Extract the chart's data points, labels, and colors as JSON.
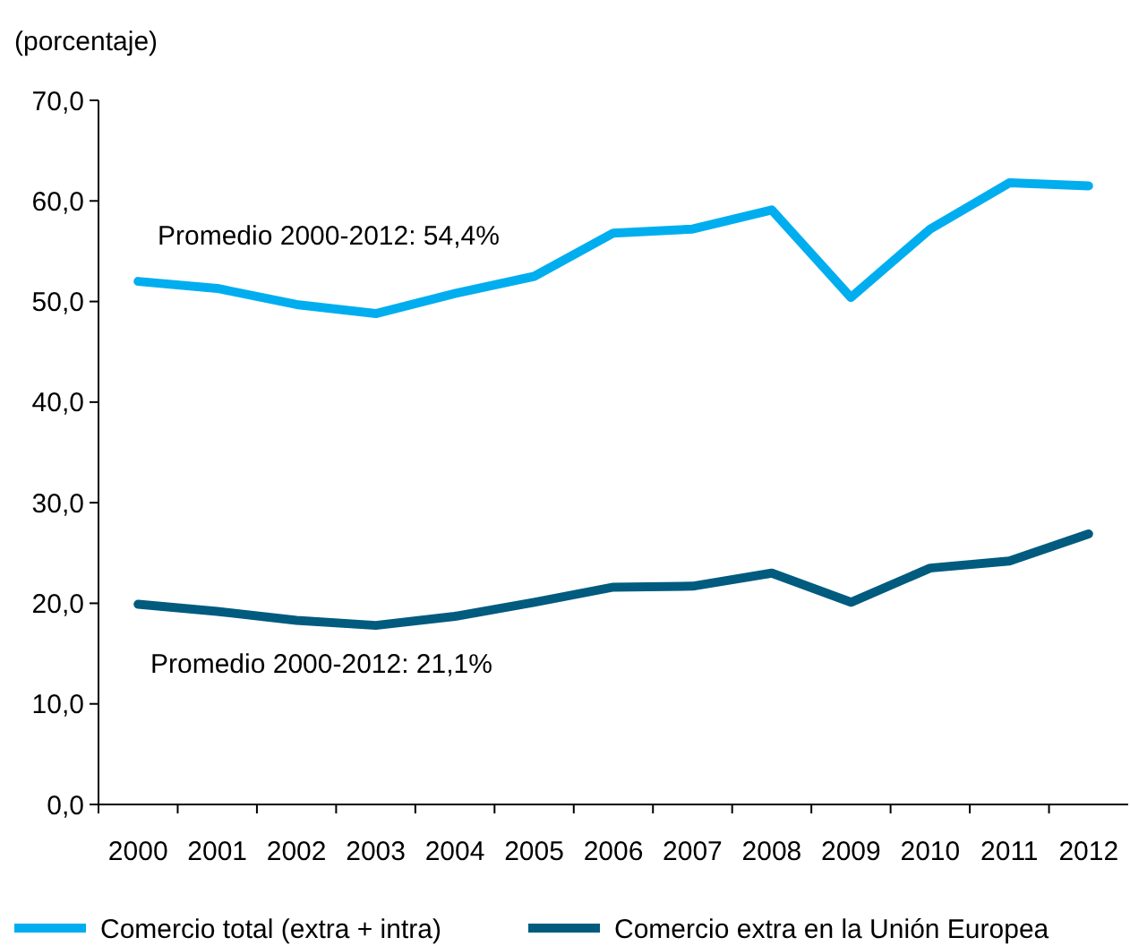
{
  "chart_data": {
    "type": "line",
    "ylabel": "(porcentaje)",
    "categories": [
      "2000",
      "2001",
      "2002",
      "2003",
      "2004",
      "2005",
      "2006",
      "2007",
      "2008",
      "2009",
      "2010",
      "2011",
      "2012"
    ],
    "series": [
      {
        "name": "Comercio total (extra + intra)",
        "color": "#00aeef",
        "values": [
          52.0,
          51.3,
          49.7,
          48.8,
          50.8,
          52.5,
          56.8,
          57.2,
          59.1,
          50.4,
          57.2,
          61.8,
          61.5
        ]
      },
      {
        "name": "Comercio extra en la Unión Europea",
        "color": "#005b7f",
        "values": [
          19.9,
          19.2,
          18.3,
          17.8,
          18.7,
          20.1,
          21.6,
          21.7,
          23.0,
          20.1,
          23.5,
          24.2,
          26.9
        ]
      }
    ],
    "ylim": [
      0,
      70
    ],
    "yticks": [
      {
        "value": 0,
        "label": "0,0"
      },
      {
        "value": 10,
        "label": "10,0"
      },
      {
        "value": 20,
        "label": "20,0"
      },
      {
        "value": 30,
        "label": "30,0"
      },
      {
        "value": 40,
        "label": "40,0"
      },
      {
        "value": 50,
        "label": "50,0"
      },
      {
        "value": 60,
        "label": "60,0"
      },
      {
        "value": 70,
        "label": "70,0"
      }
    ],
    "annotations": [
      "Promedio 2000-2012: 54,4%",
      "Promedio 2000-2012: 21,1%"
    ],
    "grid": false,
    "legend": "bottom",
    "marker": "none",
    "line_style": "solid"
  }
}
